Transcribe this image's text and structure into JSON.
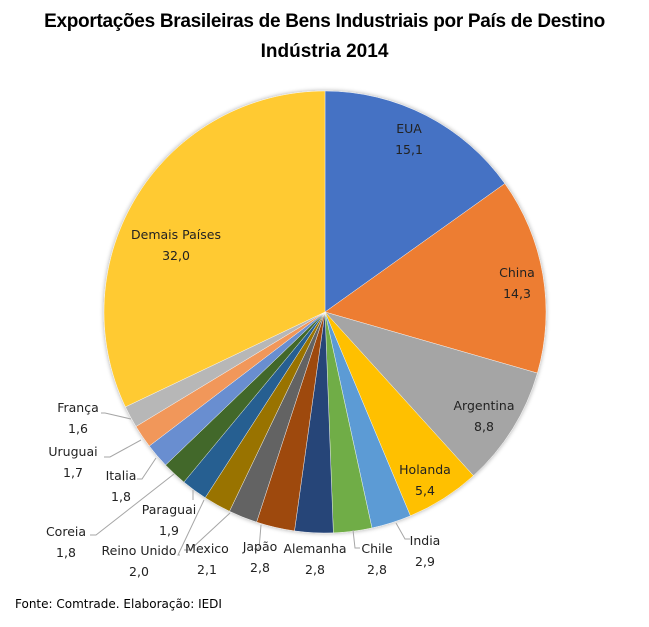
{
  "chart_data": {
    "type": "pie",
    "title": "Exportações Brasileiras de Bens Industriais por País de Destino",
    "subtitle": "Indústria 2014",
    "start": "top",
    "direction": "clockwise",
    "legend": "none",
    "slices": [
      {
        "label": "EUA",
        "value": 15.1,
        "value_text": "15,1",
        "color": "#4472C4",
        "label_pos": "inside"
      },
      {
        "label": "China",
        "value": 14.3,
        "value_text": "14,3",
        "color": "#ED7D31",
        "label_pos": "inside"
      },
      {
        "label": "Argentina",
        "value": 8.8,
        "value_text": "8,8",
        "color": "#A5A5A5",
        "label_pos": "inside"
      },
      {
        "label": "Holanda",
        "value": 5.4,
        "value_text": "5,4",
        "color": "#FFC000",
        "label_pos": "inside"
      },
      {
        "label": "India",
        "value": 2.9,
        "value_text": "2,9",
        "color": "#5B9BD5",
        "label_pos": "outside"
      },
      {
        "label": "Chile",
        "value": 2.8,
        "value_text": "2,8",
        "color": "#70AD47",
        "label_pos": "outside"
      },
      {
        "label": "Alemanha",
        "value": 2.8,
        "value_text": "2,8",
        "color": "#264478",
        "label_pos": "outside"
      },
      {
        "label": "Japão",
        "value": 2.8,
        "value_text": "2,8",
        "color": "#9E480E",
        "label_pos": "outside"
      },
      {
        "label": "Mexico",
        "value": 2.1,
        "value_text": "2,1",
        "color": "#636363",
        "label_pos": "outside"
      },
      {
        "label": "Reino Unido",
        "value": 2.0,
        "value_text": "2,0",
        "color": "#997300",
        "label_pos": "outside"
      },
      {
        "label": "Paraguai",
        "value": 1.9,
        "value_text": "1,9",
        "color": "#255E91",
        "label_pos": "outside"
      },
      {
        "label": "Coreia",
        "value": 1.8,
        "value_text": "1,8",
        "color": "#43682B",
        "label_pos": "outside"
      },
      {
        "label": "Italia",
        "value": 1.8,
        "value_text": "1,8",
        "color": "#698ED0",
        "label_pos": "outside"
      },
      {
        "label": "Uruguai",
        "value": 1.7,
        "value_text": "1,7",
        "color": "#F1975A",
        "label_pos": "outside"
      },
      {
        "label": "França",
        "value": 1.6,
        "value_text": "1,6",
        "color": "#B7B7B7",
        "label_pos": "outside"
      },
      {
        "label": "Demais Países",
        "value": 32.0,
        "value_text": "32,0",
        "color": "#FFCA33",
        "label_pos": "inside"
      }
    ]
  },
  "header": {
    "title_line1": "Exportações Brasileiras de Bens Industriais por País de Destino",
    "title_line2": "Indústria 2014"
  },
  "footer": {
    "source": "Fonte: Comtrade. Elaboração: IEDI"
  }
}
